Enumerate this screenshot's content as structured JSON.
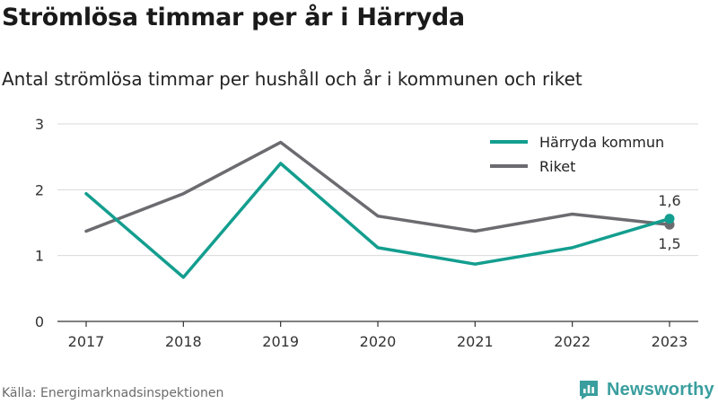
{
  "title": "Strömlösa timmar per år i Härryda",
  "subtitle": "Antal strömlösa timmar per hushåll och år i kommunen och riket",
  "source": "Källa: Energimarknadsinspektionen",
  "brand": {
    "name": "Newsworthy",
    "icon": "newsworthy-logo-icon",
    "color": "#3a9e9e"
  },
  "chart_data": {
    "type": "line",
    "x": [
      2017,
      2018,
      2019,
      2020,
      2021,
      2022,
      2023
    ],
    "x_tick_labels": [
      "2017",
      "2018",
      "2019",
      "2020",
      "2021",
      "2022",
      "2023"
    ],
    "ylim": [
      0,
      3
    ],
    "y_ticks": [
      0,
      1,
      2,
      3
    ],
    "y_tick_labels": [
      "0",
      "1",
      "2",
      "3"
    ],
    "grid": true,
    "legend_position": "top-right",
    "series": [
      {
        "name": "Härryda kommun",
        "color": "#139e8f",
        "values": [
          1.94,
          0.67,
          2.4,
          1.12,
          0.87,
          1.12,
          1.56
        ],
        "end_label": "1,6",
        "end_label_position": "above"
      },
      {
        "name": "Riket",
        "color": "#6b6b70",
        "values": [
          1.37,
          1.94,
          2.72,
          1.6,
          1.37,
          1.63,
          1.47
        ],
        "end_label": "1,5",
        "end_label_position": "below"
      }
    ]
  }
}
